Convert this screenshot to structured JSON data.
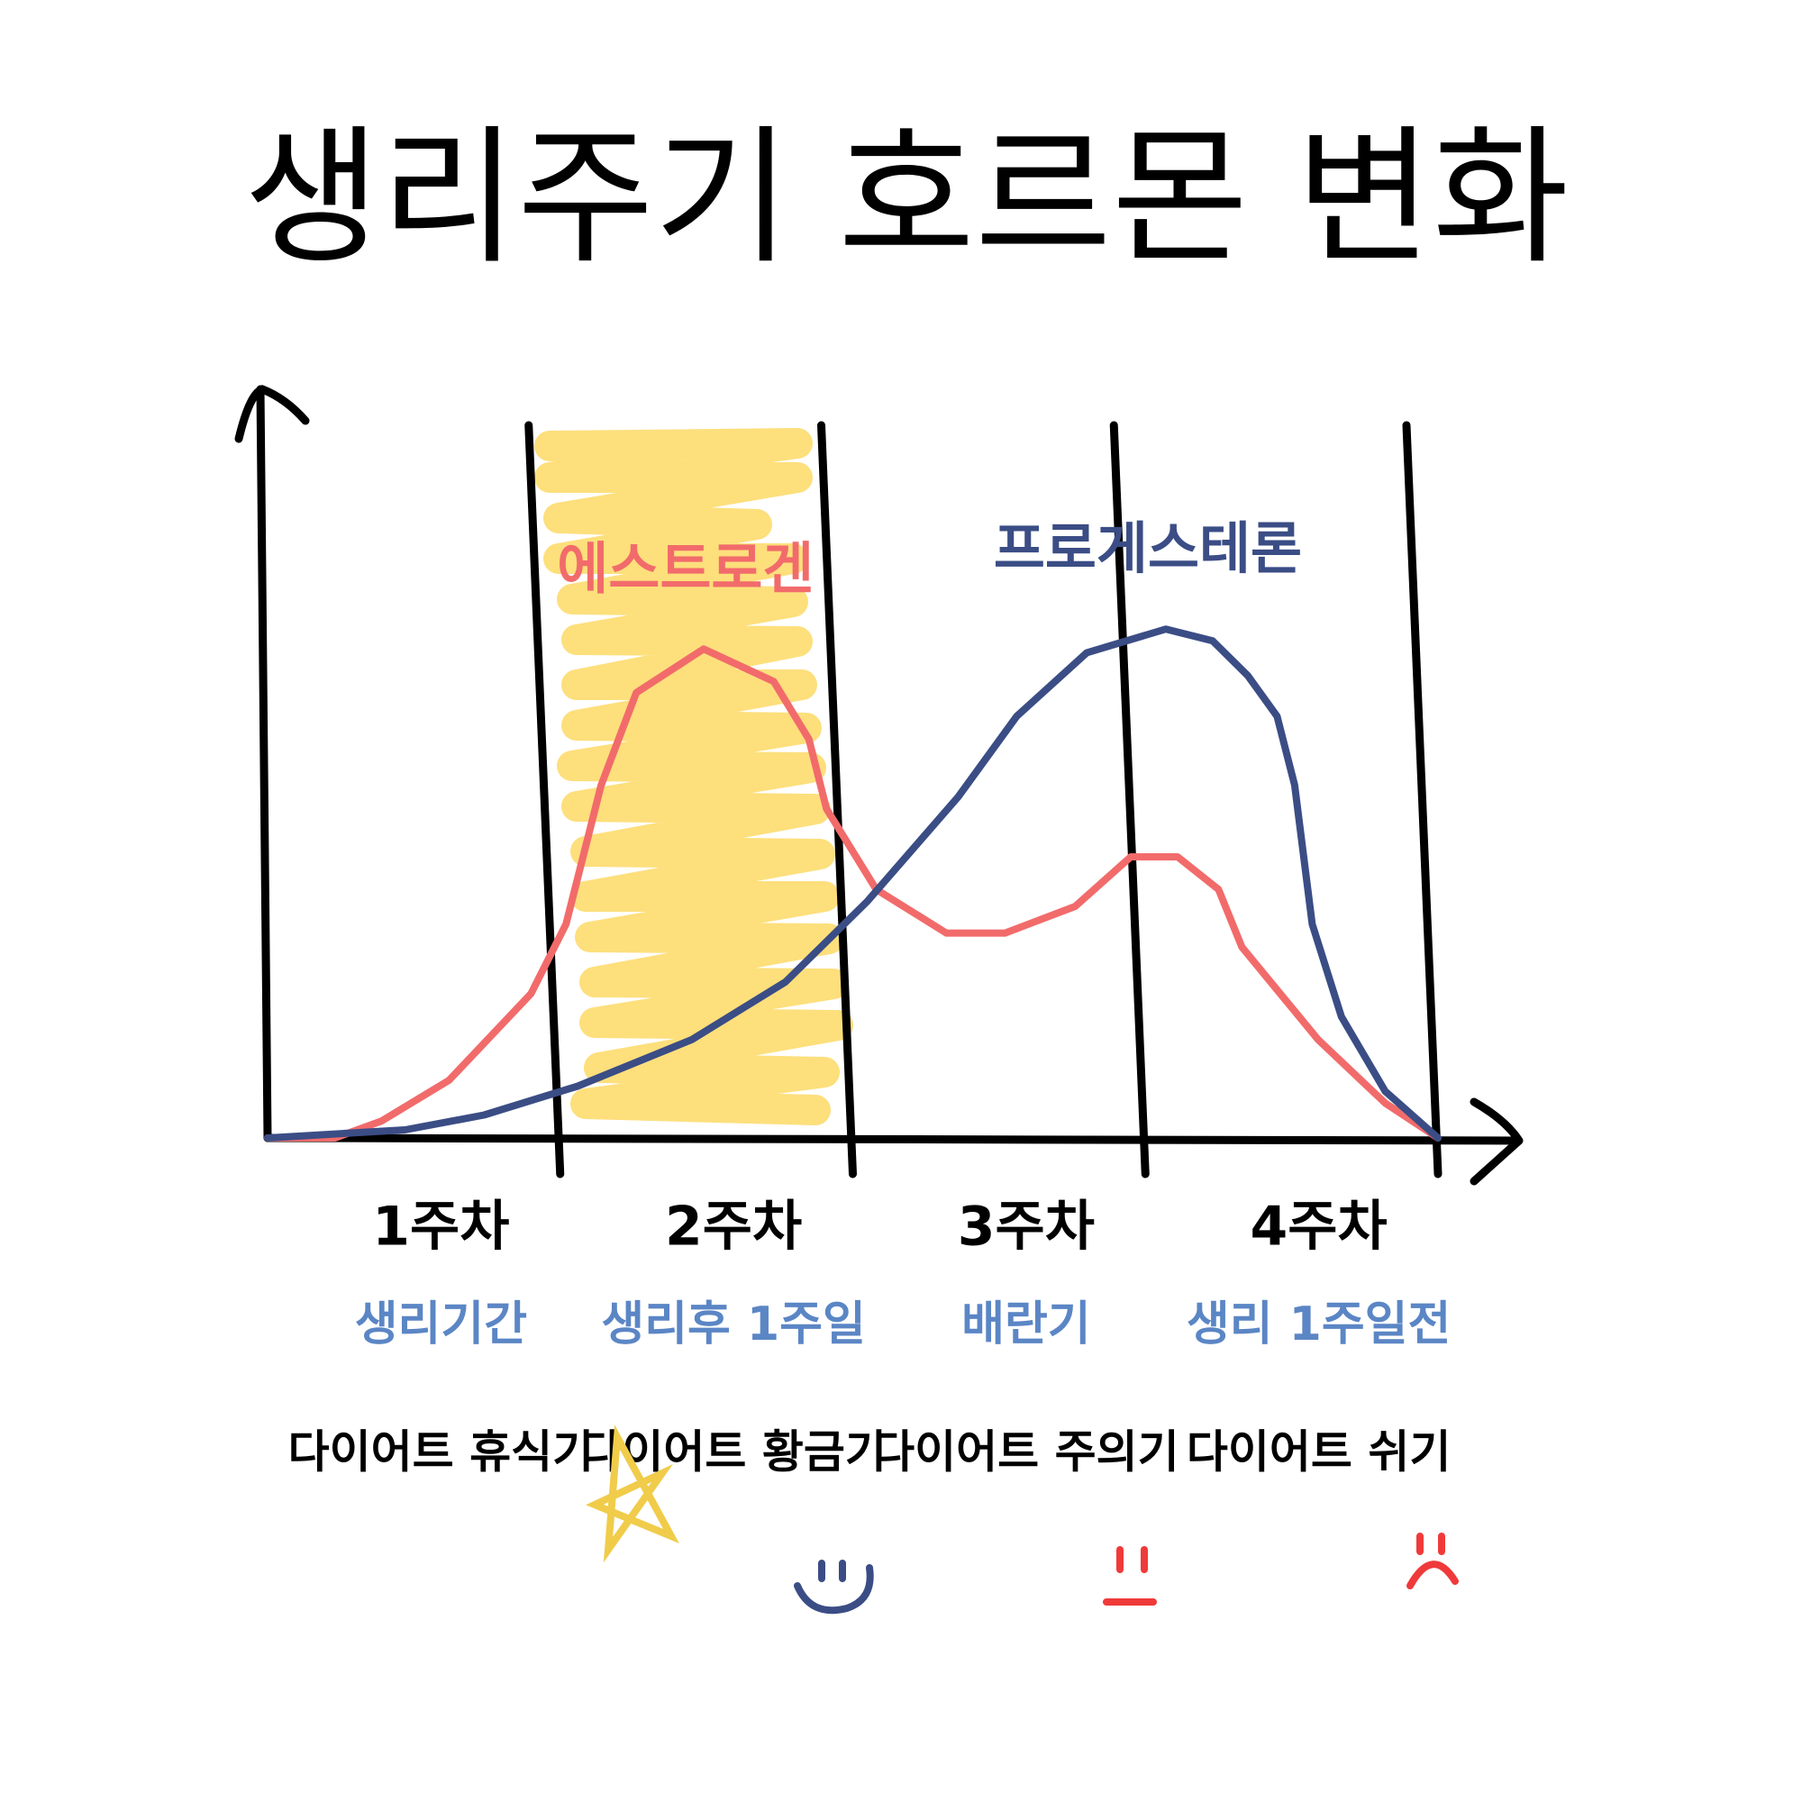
{
  "chart_data": {
    "type": "line",
    "title": "생리주기 호르몬 변화",
    "categories": [
      "1주차",
      "2주차",
      "3주차",
      "4주차"
    ],
    "phases": [
      "생리기간",
      "생리후 1주일",
      "배란기",
      "생리 1주일전"
    ],
    "diet": [
      "다이어트 휴식기",
      "다이어트 황금기",
      "다이어트 주의기",
      "다이어트 쉬기"
    ],
    "xlim": [
      0,
      4
    ],
    "ylim": [
      0,
      100
    ],
    "series": [
      {
        "name": "에스트로겐",
        "color": "#f26b6b",
        "x": [
          0,
          0.23,
          0.39,
          0.62,
          0.9,
          1.02,
          1.14,
          1.26,
          1.49,
          1.73,
          1.85,
          1.91,
          2.08,
          2.32,
          2.52,
          2.76,
          2.95,
          3.11,
          3.25,
          3.33,
          3.59,
          3.82,
          4.0
        ],
        "values": [
          0,
          0,
          2.3,
          7.8,
          19.5,
          28.9,
          47.7,
          60.2,
          66.1,
          61.7,
          53.9,
          44.5,
          33.6,
          27.7,
          27.7,
          31.3,
          38.0,
          38.0,
          33.6,
          25.8,
          13.3,
          4.7,
          0
        ]
      },
      {
        "name": "프로게스테론",
        "color": "#3b4d85",
        "x": [
          0,
          0.47,
          0.74,
          1.06,
          1.45,
          1.77,
          2.05,
          2.36,
          2.56,
          2.8,
          3.07,
          3.23,
          3.35,
          3.45,
          3.51,
          3.57,
          3.67,
          3.82,
          4.0
        ],
        "values": [
          0,
          1.1,
          3.1,
          7.0,
          13.3,
          21.1,
          32.0,
          46.1,
          57.0,
          65.6,
          68.8,
          67.2,
          62.5,
          57.0,
          47.7,
          28.9,
          16.4,
          6.3,
          0
        ]
      }
    ]
  }
}
